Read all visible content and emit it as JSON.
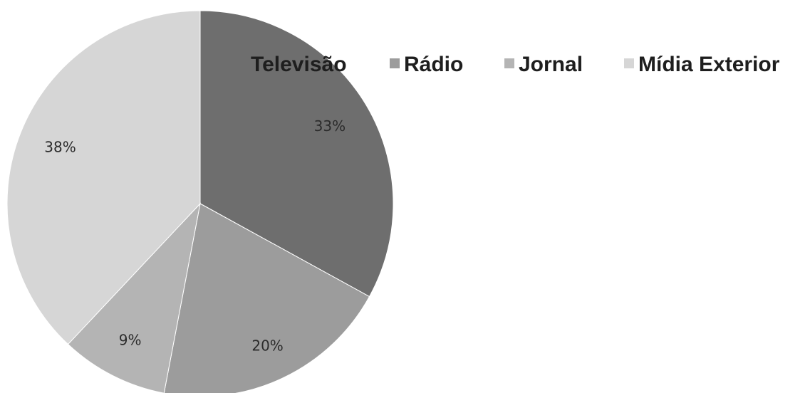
{
  "chart_data": {
    "type": "pie",
    "title": "",
    "categories": [
      "Televisão",
      "Rádio",
      "Jornal",
      "Mídia Exterior"
    ],
    "values": [
      33,
      20,
      9,
      38
    ],
    "labels": [
      "33%",
      "20%",
      "9%",
      "38%"
    ],
    "colors": [
      "#6e6e6e",
      "#9c9c9c",
      "#b4b4b4",
      "#d6d6d6"
    ],
    "legend_position": "top-right",
    "start_angle_deg": 0,
    "direction": "clockwise"
  }
}
